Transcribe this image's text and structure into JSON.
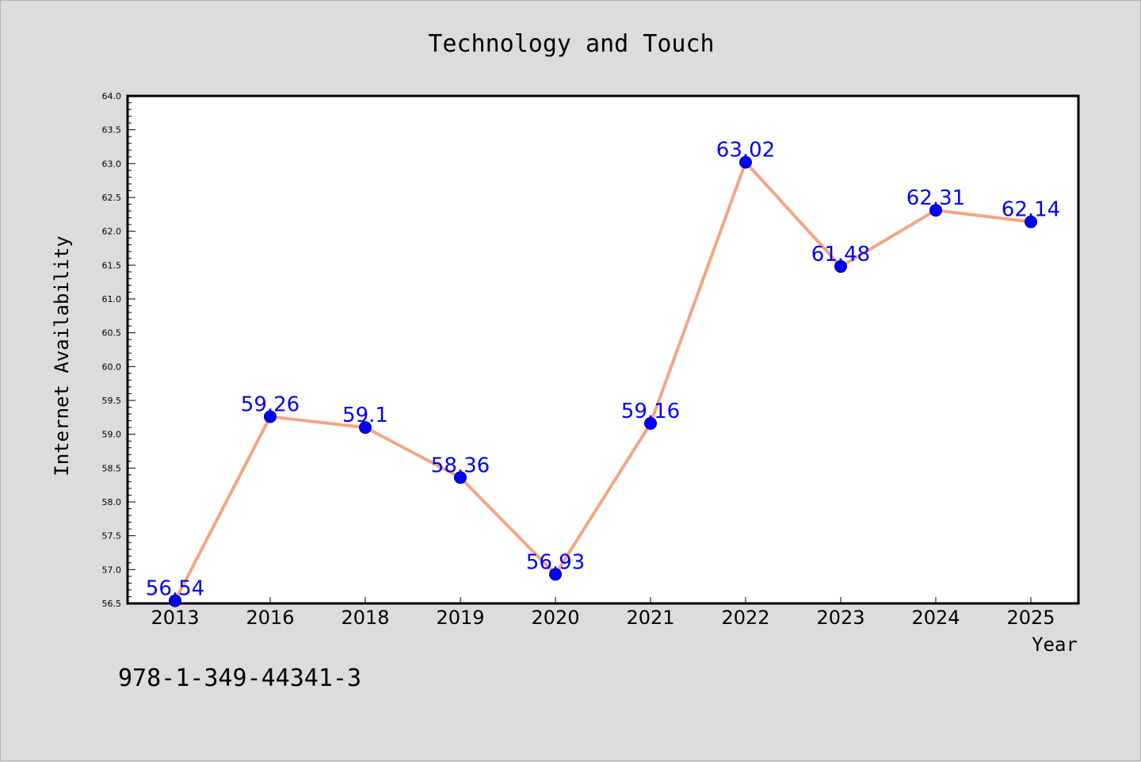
{
  "chart_data": {
    "type": "line",
    "title": "Technology and Touch",
    "xlabel": "Year",
    "ylabel": "Internet Availability",
    "categories": [
      "2013",
      "2016",
      "2018",
      "2019",
      "2020",
      "2021",
      "2022",
      "2023",
      "2024",
      "2025"
    ],
    "series": [
      {
        "values": [
          56.54,
          59.26,
          59.1,
          58.36,
          56.93,
          59.16,
          63.02,
          61.48,
          62.31,
          62.14
        ],
        "labels": [
          "56.54",
          "59.26",
          "59.1",
          "58.36",
          "56.93",
          "59.16",
          "63.02",
          "61.48",
          "62.31",
          "62.14"
        ],
        "line_color": "#f4a582",
        "marker_color": "#0000ff"
      }
    ],
    "ylim": [
      56.5,
      64.0
    ],
    "yticks": [
      "56.5",
      "57.0",
      "57.5",
      "58.0",
      "58.5",
      "59.0",
      "59.5",
      "60.0",
      "60.5",
      "61.0",
      "61.5",
      "62.0",
      "62.5",
      "63.0",
      "63.5",
      "64.0"
    ],
    "grid": false,
    "legend": "none"
  },
  "annotation": {
    "isbn": "978-1-349-44341-3"
  },
  "colors": {
    "background": "#dcdcdc",
    "plot_background": "#ffffff",
    "label_color": "#0000ff"
  }
}
